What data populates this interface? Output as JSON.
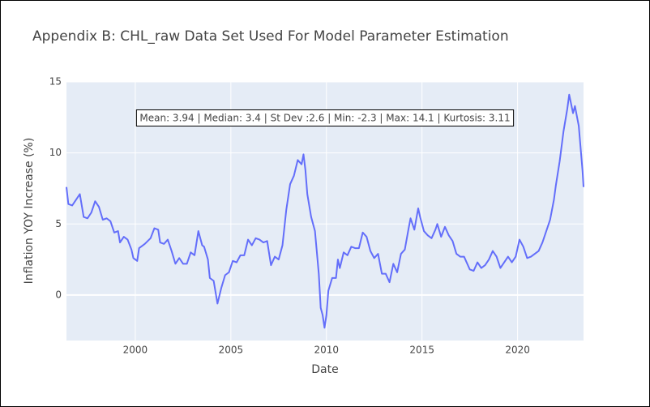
{
  "chart_data": {
    "type": "line",
    "title": "Appendix B: CHL_raw Data Set Used For Model Parameter Estimation",
    "annotation": "Mean: 3.94 | Median: 3.4 | St Dev :2.6 | Min: -2.3 | Max: 14.1 | Kurtosis: 3.11",
    "x_label": "Date",
    "y_label": "Inflation YOY Increase (%)",
    "xlim": [
      1996.4,
      2023.45
    ],
    "xticks": [
      2000,
      2005,
      2010,
      2015,
      2020
    ],
    "ylim": [
      -3.2,
      15
    ],
    "yticks": [
      0,
      5,
      10,
      15
    ],
    "grid": true,
    "x": [
      1996.4,
      1996.5,
      1996.7,
      1996.9,
      1997.1,
      1997.3,
      1997.5,
      1997.7,
      1997.9,
      1998.1,
      1998.3,
      1998.5,
      1998.7,
      1998.9,
      1999.1,
      1999.2,
      1999.4,
      1999.6,
      1999.8,
      1999.9,
      2000.1,
      2000.2,
      2000.5,
      2000.8,
      2001.0,
      2001.2,
      2001.3,
      2001.5,
      2001.7,
      2001.9,
      2002.1,
      2002.3,
      2002.5,
      2002.7,
      2002.9,
      2003.1,
      2003.3,
      2003.5,
      2003.6,
      2003.8,
      2003.9,
      2004.1,
      2004.3,
      2004.5,
      2004.7,
      2004.9,
      2005.1,
      2005.3,
      2005.5,
      2005.7,
      2005.9,
      2006.1,
      2006.3,
      2006.5,
      2006.7,
      2006.9,
      2007.1,
      2007.3,
      2007.5,
      2007.7,
      2007.9,
      2008.1,
      2008.3,
      2008.5,
      2008.7,
      2008.8,
      2008.9,
      2009.0,
      2009.2,
      2009.4,
      2009.5,
      2009.6,
      2009.7,
      2009.8,
      2009.9,
      2010.0,
      2010.1,
      2010.3,
      2010.5,
      2010.6,
      2010.7,
      2010.9,
      2011.1,
      2011.3,
      2011.5,
      2011.7,
      2011.9,
      2012.1,
      2012.3,
      2012.5,
      2012.7,
      2012.9,
      2013.1,
      2013.3,
      2013.5,
      2013.7,
      2013.9,
      2014.1,
      2014.3,
      2014.4,
      2014.6,
      2014.8,
      2014.9,
      2015.1,
      2015.3,
      2015.5,
      2015.7,
      2015.8,
      2016.0,
      2016.2,
      2016.4,
      2016.6,
      2016.8,
      2017.0,
      2017.2,
      2017.5,
      2017.7,
      2017.9,
      2018.1,
      2018.3,
      2018.5,
      2018.7,
      2018.9,
      2019.1,
      2019.3,
      2019.5,
      2019.7,
      2019.9,
      2020.1,
      2020.3,
      2020.5,
      2020.7,
      2020.9,
      2021.1,
      2021.3,
      2021.5,
      2021.7,
      2021.9,
      2022.0,
      2022.2,
      2022.4,
      2022.6,
      2022.7,
      2022.9,
      2023.0,
      2023.2,
      2023.4,
      2023.45
    ],
    "series": [
      {
        "color": "#636efa",
        "values": [
          7.6,
          6.4,
          6.3,
          6.7,
          7.1,
          5.5,
          5.4,
          5.8,
          6.6,
          6.2,
          5.3,
          5.4,
          5.2,
          4.4,
          4.5,
          3.7,
          4.1,
          3.9,
          3.2,
          2.6,
          2.4,
          3.3,
          3.6,
          4.0,
          4.7,
          4.6,
          3.7,
          3.6,
          3.9,
          3.1,
          2.2,
          2.6,
          2.2,
          2.2,
          3.0,
          2.8,
          4.5,
          3.5,
          3.4,
          2.5,
          1.2,
          1.0,
          -0.6,
          0.5,
          1.4,
          1.6,
          2.4,
          2.3,
          2.8,
          2.8,
          3.9,
          3.5,
          4.0,
          3.9,
          3.7,
          3.8,
          2.1,
          2.7,
          2.5,
          3.5,
          6.0,
          7.8,
          8.4,
          9.5,
          9.2,
          9.9,
          8.8,
          7.1,
          5.5,
          4.5,
          3.0,
          1.5,
          -0.9,
          -1.4,
          -2.3,
          -1.4,
          0.3,
          1.2,
          1.2,
          2.5,
          1.9,
          3.0,
          2.8,
          3.4,
          3.3,
          3.3,
          4.4,
          4.1,
          3.1,
          2.6,
          2.9,
          1.5,
          1.5,
          0.9,
          2.2,
          1.6,
          2.9,
          3.2,
          4.7,
          5.4,
          4.6,
          6.1,
          5.5,
          4.5,
          4.2,
          4.0,
          4.6,
          5.0,
          4.1,
          4.8,
          4.2,
          3.8,
          2.9,
          2.7,
          2.7,
          1.8,
          1.7,
          2.3,
          1.9,
          2.1,
          2.5,
          3.1,
          2.7,
          1.9,
          2.3,
          2.7,
          2.3,
          2.7,
          3.9,
          3.4,
          2.6,
          2.7,
          2.9,
          3.1,
          3.7,
          4.5,
          5.3,
          6.7,
          7.7,
          9.4,
          11.5,
          13.1,
          14.1,
          12.8,
          13.3,
          11.9,
          8.7,
          7.6
        ]
      }
    ]
  }
}
